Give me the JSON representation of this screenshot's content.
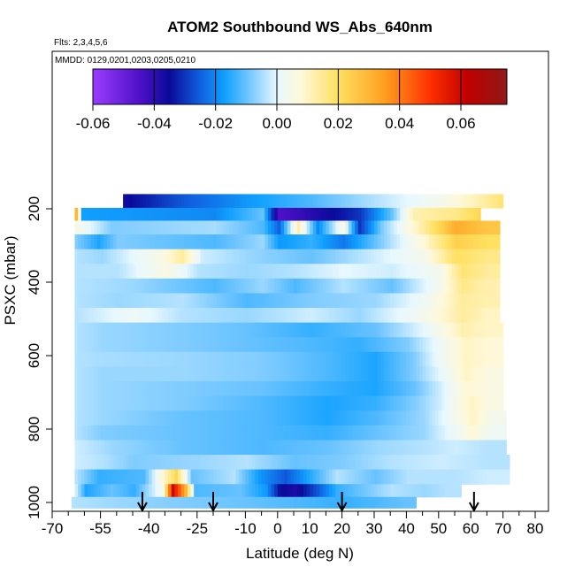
{
  "chart_data": {
    "type": "heatmap",
    "title": "ATOM2 Southbound WS_Abs_640nm",
    "flights_note": "Flts: 2,3,4,5,6",
    "dates_note": "MMDD: 0129,0201,0203,0205,0210",
    "xlabel": "Latitude (deg N)",
    "ylabel": "PSXC (mbar)",
    "xlim": [
      -70,
      80
    ],
    "ylim": [
      1000,
      100
    ],
    "x_ticks": [
      -70,
      -55,
      -40,
      -25,
      -10,
      0,
      10,
      20,
      30,
      40,
      50,
      60,
      70,
      80
    ],
    "x_minor_ticks": [
      -65,
      -60,
      -50,
      -45,
      -35,
      -30,
      -20,
      -15,
      -5,
      5,
      15,
      25,
      35,
      45,
      55,
      65,
      75
    ],
    "y_ticks": [
      200,
      400,
      600,
      800,
      1000
    ],
    "colorbar": {
      "range": [
        -0.06,
        0.075
      ],
      "ticks": [
        -0.06,
        -0.04,
        -0.02,
        0.0,
        0.02,
        0.04,
        0.06
      ],
      "tick_labels": [
        "-0.06",
        "-0.04",
        "-0.02",
        "0.00",
        "0.02",
        "0.04",
        "0.06"
      ],
      "stops": [
        {
          "v": -0.06,
          "color": "#9a3dff"
        },
        {
          "v": -0.045,
          "color": "#5010c8"
        },
        {
          "v": -0.035,
          "color": "#0a0a9a"
        },
        {
          "v": -0.025,
          "color": "#1060e0"
        },
        {
          "v": -0.017,
          "color": "#10a0ff"
        },
        {
          "v": -0.008,
          "color": "#80ccff"
        },
        {
          "v": 0.0,
          "color": "#e8f8ff"
        },
        {
          "v": 0.008,
          "color": "#fff8d8"
        },
        {
          "v": 0.02,
          "color": "#ffe060"
        },
        {
          "v": 0.035,
          "color": "#ffa020"
        },
        {
          "v": 0.05,
          "color": "#ff3000"
        },
        {
          "v": 0.062,
          "color": "#c00000"
        },
        {
          "v": 0.075,
          "color": "#901818"
        }
      ]
    },
    "arrows_lat": [
      -42,
      -20,
      20,
      61
    ],
    "rows": [
      {
        "p": 180,
        "lon": -48,
        "hin": 70,
        "segs": [
          [
            -48,
            -0.036
          ],
          [
            -30,
            -0.026
          ],
          [
            -10,
            -0.018
          ],
          [
            10,
            -0.012
          ],
          [
            30,
            -0.004
          ],
          [
            50,
            0.004
          ],
          [
            62,
            0.012
          ],
          [
            69,
            0.018
          ]
        ]
      },
      {
        "p": 215,
        "lon": -63,
        "hin": 63,
        "segs": [
          [
            -63,
            0.03
          ],
          [
            -61,
            -0.017
          ],
          [
            -20,
            -0.02
          ],
          [
            -5,
            -0.01
          ],
          [
            0,
            -0.045
          ],
          [
            12,
            -0.038
          ],
          [
            25,
            -0.03
          ],
          [
            35,
            -0.01
          ],
          [
            42,
            0.012
          ],
          [
            55,
            0.016
          ],
          [
            62,
            0.022
          ]
        ]
      },
      {
        "p": 250,
        "lon": -63,
        "hin": 69,
        "segs": [
          [
            -63,
            0.005
          ],
          [
            -52,
            -0.008
          ],
          [
            -20,
            -0.005
          ],
          [
            -5,
            -0.012
          ],
          [
            0,
            -0.025
          ],
          [
            6,
            0.012
          ],
          [
            12,
            -0.02
          ],
          [
            20,
            0.006
          ],
          [
            25,
            -0.03
          ],
          [
            32,
            -0.008
          ],
          [
            45,
            0.014
          ],
          [
            55,
            0.032
          ],
          [
            65,
            0.026
          ]
        ]
      },
      {
        "p": 290,
        "lon": -63,
        "hin": 69,
        "segs": [
          [
            -63,
            -0.008
          ],
          [
            -56,
            -0.016
          ],
          [
            -50,
            -0.008
          ],
          [
            -20,
            -0.012
          ],
          [
            -5,
            -0.006
          ],
          [
            0,
            -0.018
          ],
          [
            10,
            -0.014
          ],
          [
            20,
            -0.022
          ],
          [
            30,
            -0.01
          ],
          [
            45,
            0.008
          ],
          [
            55,
            0.024
          ],
          [
            65,
            0.02
          ]
        ]
      },
      {
        "p": 330,
        "lon": -63,
        "hin": 69,
        "segs": [
          [
            -63,
            -0.004
          ],
          [
            -55,
            -0.006
          ],
          [
            -36,
            0.006
          ],
          [
            -30,
            0.014
          ],
          [
            -24,
            -0.002
          ],
          [
            -10,
            -0.006
          ],
          [
            10,
            -0.01
          ],
          [
            25,
            -0.004
          ],
          [
            45,
            0.004
          ],
          [
            55,
            0.02
          ],
          [
            65,
            0.016
          ]
        ]
      },
      {
        "p": 370,
        "lon": -63,
        "hin": 69,
        "segs": [
          [
            -63,
            -0.004
          ],
          [
            -50,
            -0.004
          ],
          [
            -35,
            0.006
          ],
          [
            -25,
            -0.004
          ],
          [
            -10,
            -0.006
          ],
          [
            5,
            -0.004
          ],
          [
            20,
            0.0
          ],
          [
            35,
            -0.002
          ],
          [
            50,
            0.004
          ],
          [
            57,
            0.018
          ],
          [
            65,
            0.014
          ]
        ]
      },
      {
        "p": 410,
        "lon": -63,
        "hin": 69,
        "segs": [
          [
            -63,
            -0.004
          ],
          [
            -45,
            -0.006
          ],
          [
            -20,
            -0.012
          ],
          [
            -5,
            -0.006
          ],
          [
            5,
            -0.012
          ],
          [
            20,
            -0.004
          ],
          [
            35,
            -0.01
          ],
          [
            50,
            0.004
          ],
          [
            57,
            0.016
          ],
          [
            65,
            0.012
          ]
        ]
      },
      {
        "p": 450,
        "lon": -63,
        "hin": 69,
        "segs": [
          [
            -63,
            -0.004
          ],
          [
            -50,
            -0.006
          ],
          [
            -30,
            -0.004
          ],
          [
            -10,
            -0.012
          ],
          [
            10,
            -0.008
          ],
          [
            30,
            -0.006
          ],
          [
            45,
            0.002
          ],
          [
            57,
            0.014
          ],
          [
            65,
            0.012
          ]
        ]
      },
      {
        "p": 490,
        "lon": -63,
        "hin": 69,
        "segs": [
          [
            -63,
            -0.004
          ],
          [
            -45,
            0.002
          ],
          [
            -30,
            -0.004
          ],
          [
            -10,
            -0.006
          ],
          [
            10,
            -0.002
          ],
          [
            25,
            -0.006
          ],
          [
            45,
            0.004
          ],
          [
            57,
            0.014
          ],
          [
            65,
            0.01
          ]
        ]
      },
      {
        "p": 530,
        "lon": -63,
        "hin": 70,
        "segs": [
          [
            -63,
            -0.004
          ],
          [
            -55,
            -0.006
          ],
          [
            -30,
            -0.008
          ],
          [
            -10,
            -0.01
          ],
          [
            10,
            -0.014
          ],
          [
            30,
            -0.01
          ],
          [
            45,
            0.0
          ],
          [
            57,
            0.012
          ],
          [
            65,
            0.01
          ]
        ]
      },
      {
        "p": 570,
        "lon": -63,
        "hin": 70,
        "segs": [
          [
            -63,
            -0.004
          ],
          [
            -55,
            -0.006
          ],
          [
            -30,
            -0.008
          ],
          [
            -10,
            -0.01
          ],
          [
            10,
            -0.012
          ],
          [
            25,
            -0.014
          ],
          [
            40,
            -0.008
          ],
          [
            50,
            0.002
          ],
          [
            58,
            0.01
          ],
          [
            65,
            0.008
          ]
        ]
      },
      {
        "p": 610,
        "lon": -63,
        "hin": 70,
        "segs": [
          [
            -63,
            -0.004
          ],
          [
            -55,
            -0.005
          ],
          [
            -30,
            -0.006
          ],
          [
            -5,
            -0.008
          ],
          [
            15,
            -0.012
          ],
          [
            30,
            -0.016
          ],
          [
            42,
            -0.008
          ],
          [
            50,
            0.002
          ],
          [
            58,
            0.01
          ],
          [
            65,
            0.008
          ]
        ]
      },
      {
        "p": 650,
        "lon": -63,
        "hin": 70,
        "segs": [
          [
            -63,
            -0.004
          ],
          [
            -55,
            -0.006
          ],
          [
            -30,
            -0.006
          ],
          [
            -5,
            -0.008
          ],
          [
            15,
            -0.012
          ],
          [
            30,
            -0.016
          ],
          [
            42,
            -0.008
          ],
          [
            50,
            0.0
          ],
          [
            58,
            0.01
          ],
          [
            65,
            0.006
          ]
        ]
      },
      {
        "p": 690,
        "lon": -63,
        "hin": 70,
        "segs": [
          [
            -63,
            -0.004
          ],
          [
            -55,
            -0.006
          ],
          [
            -30,
            -0.008
          ],
          [
            -5,
            -0.01
          ],
          [
            15,
            -0.014
          ],
          [
            30,
            -0.016
          ],
          [
            42,
            -0.01
          ],
          [
            50,
            -0.002
          ],
          [
            58,
            0.008
          ],
          [
            65,
            0.006
          ]
        ]
      },
      {
        "p": 730,
        "lon": -63,
        "hin": 70,
        "segs": [
          [
            -63,
            -0.004
          ],
          [
            -55,
            -0.006
          ],
          [
            -30,
            -0.008
          ],
          [
            -5,
            -0.012
          ],
          [
            15,
            -0.016
          ],
          [
            30,
            -0.014
          ],
          [
            42,
            -0.008
          ],
          [
            50,
            -0.002
          ],
          [
            56,
            0.006
          ],
          [
            60,
            0.01
          ],
          [
            65,
            0.006
          ]
        ]
      },
      {
        "p": 770,
        "lon": -63,
        "hin": 71,
        "segs": [
          [
            -63,
            -0.004
          ],
          [
            -55,
            -0.006
          ],
          [
            -30,
            -0.01
          ],
          [
            -5,
            -0.012
          ],
          [
            15,
            -0.016
          ],
          [
            30,
            -0.012
          ],
          [
            45,
            -0.006
          ],
          [
            55,
            0.004
          ],
          [
            60,
            0.01
          ],
          [
            66,
            0.004
          ]
        ]
      },
      {
        "p": 810,
        "lon": -63,
        "hin": 71,
        "segs": [
          [
            -63,
            -0.004
          ],
          [
            -55,
            -0.008
          ],
          [
            -30,
            -0.01
          ],
          [
            -5,
            -0.012
          ],
          [
            15,
            -0.014
          ],
          [
            30,
            -0.01
          ],
          [
            45,
            -0.006
          ],
          [
            55,
            0.002
          ],
          [
            60,
            0.008
          ],
          [
            66,
            0.002
          ]
        ]
      },
      {
        "p": 850,
        "lon": -63,
        "hin": 71,
        "segs": [
          [
            -63,
            -0.002
          ],
          [
            -52,
            -0.006
          ],
          [
            -30,
            -0.01
          ],
          [
            -5,
            -0.012
          ],
          [
            15,
            -0.01
          ],
          [
            30,
            -0.006
          ],
          [
            45,
            -0.004
          ],
          [
            55,
            -0.002
          ],
          [
            65,
            -0.004
          ]
        ]
      },
      {
        "p": 890,
        "lon": -63,
        "hin": 72,
        "segs": [
          [
            -63,
            -0.002
          ],
          [
            -55,
            -0.004
          ],
          [
            -45,
            -0.008
          ],
          [
            -25,
            -0.006
          ],
          [
            -10,
            -0.004
          ],
          [
            5,
            -0.01
          ],
          [
            20,
            -0.008
          ],
          [
            35,
            -0.004
          ],
          [
            50,
            -0.002
          ],
          [
            65,
            -0.004
          ]
        ]
      },
      {
        "p": 930,
        "lon": -63,
        "hin": 72,
        "segs": [
          [
            -63,
            -0.004
          ],
          [
            -56,
            -0.014
          ],
          [
            -42,
            -0.012
          ],
          [
            -32,
            0.022
          ],
          [
            -27,
            -0.01
          ],
          [
            -14,
            -0.004
          ],
          [
            -6,
            -0.018
          ],
          [
            2,
            -0.026
          ],
          [
            12,
            -0.012
          ],
          [
            18,
            -0.004
          ],
          [
            22,
            -0.006
          ],
          [
            30,
            -0.01
          ],
          [
            40,
            -0.004
          ],
          [
            55,
            -0.004
          ],
          [
            65,
            -0.002
          ]
        ]
      },
      {
        "p": 970,
        "lon": -63,
        "hin": 57,
        "segs": [
          [
            -63,
            -0.002
          ],
          [
            -60,
            -0.016
          ],
          [
            -52,
            -0.01
          ],
          [
            -45,
            -0.014
          ],
          [
            -36,
            0.004
          ],
          [
            -33,
            0.06
          ],
          [
            -29,
            0.03
          ],
          [
            -26,
            -0.012
          ],
          [
            -12,
            -0.01
          ],
          [
            -4,
            -0.018
          ],
          [
            0,
            -0.034
          ],
          [
            5,
            -0.038
          ],
          [
            12,
            -0.026
          ],
          [
            18,
            -0.014
          ],
          [
            25,
            -0.01
          ],
          [
            35,
            -0.004
          ],
          [
            45,
            -0.006
          ],
          [
            52,
            -0.004
          ]
        ]
      },
      {
        "p": 1000,
        "lon": -64,
        "hin": 43,
        "segs": [
          [
            -64,
            -0.004
          ],
          [
            -50,
            -0.006
          ],
          [
            -30,
            -0.008
          ],
          [
            -10,
            -0.01
          ],
          [
            5,
            -0.012
          ],
          [
            20,
            -0.014
          ],
          [
            30,
            -0.012
          ],
          [
            40,
            -0.01
          ]
        ]
      }
    ]
  }
}
